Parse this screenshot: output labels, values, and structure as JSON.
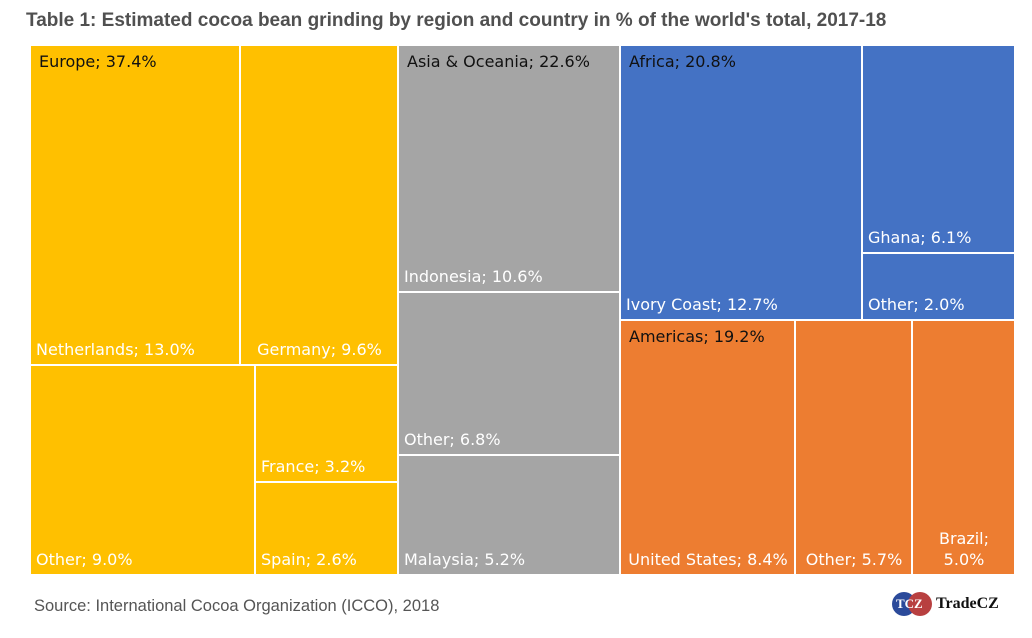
{
  "chart_data": {
    "type": "treemap",
    "title": "Table 1: Estimated cocoa bean grinding by region and country in % of the world's total, 2017-18",
    "unit": "%",
    "regions": [
      {
        "name": "Europe",
        "value": 37.4,
        "label": "Europe; 37.4%",
        "color": "#FFC000",
        "children": [
          {
            "name": "Netherlands",
            "value": 13.0,
            "label": "Netherlands; 13.0%"
          },
          {
            "name": "Germany",
            "value": 9.6,
            "label": "Germany; 9.6%"
          },
          {
            "name": "Other",
            "value": 9.0,
            "label": "Other; 9.0%"
          },
          {
            "name": "France",
            "value": 3.2,
            "label": "France; 3.2%"
          },
          {
            "name": "Spain",
            "value": 2.6,
            "label": "Spain; 2.6%"
          }
        ]
      },
      {
        "name": "Asia & Oceania",
        "value": 22.6,
        "label": "Asia & Oceania; 22.6%",
        "color": "#A5A5A5",
        "children": [
          {
            "name": "Indonesia",
            "value": 10.6,
            "label": "Indonesia; 10.6%"
          },
          {
            "name": "Other",
            "value": 6.8,
            "label": "Other; 6.8%"
          },
          {
            "name": "Malaysia",
            "value": 5.2,
            "label": "Malaysia; 5.2%"
          }
        ]
      },
      {
        "name": "Africa",
        "value": 20.8,
        "label": "Africa; 20.8%",
        "color": "#4472C4",
        "children": [
          {
            "name": "Ivory Coast",
            "value": 12.7,
            "label": "Ivory Coast; 12.7%"
          },
          {
            "name": "Ghana",
            "value": 6.1,
            "label": "Ghana; 6.1%"
          },
          {
            "name": "Other",
            "value": 2.0,
            "label": "Other; 2.0%"
          }
        ]
      },
      {
        "name": "Americas",
        "value": 19.2,
        "label": "Americas; 19.2%",
        "color": "#ED7D31",
        "children": [
          {
            "name": "United States",
            "value": 8.4,
            "label": "United States; 8.4%"
          },
          {
            "name": "Other",
            "value": 5.7,
            "label": "Other; 5.7%"
          },
          {
            "name": "Brazil",
            "value": 5.0,
            "label": "Brazil; 5.0%"
          }
        ]
      }
    ]
  },
  "source": "Source: International Cocoa Organization (ICCO), 2018",
  "logo": {
    "mark": "TCZ",
    "name": "TradeCZ"
  }
}
